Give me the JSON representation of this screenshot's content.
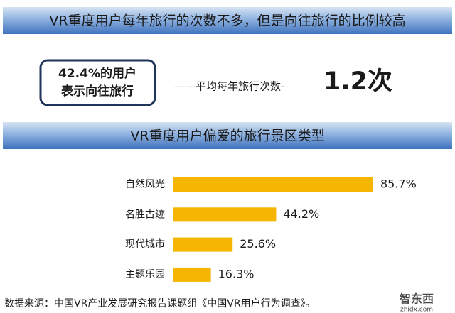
{
  "chart_data": {
    "type": "bar",
    "orientation": "horizontal",
    "title": "VR重度用户每年旅行的次数不多，但是向往旅行的比例较高",
    "annotations": [
      "42.4%的用户",
      "表示向往旅行",
      "——平均每年旅行次数-",
      "1.2次"
    ],
    "subtitle": "VR重度用户偏爱的旅行景区类型",
    "categories": [
      "自然风光",
      "名胜古迹",
      "现代城市",
      "主题乐园"
    ],
    "values": [
      85.7,
      44.2,
      25.6,
      16.3
    ],
    "value_labels": [
      "85.7%",
      "44.2%",
      "25.6%",
      "16.3%"
    ],
    "color": "#f5b500",
    "source": "数据来源：中国VR产业发展研究报告课题组《中国VR用户行为调查》。",
    "watermark": [
      "智东西",
      "zhidx.com"
    ]
  }
}
